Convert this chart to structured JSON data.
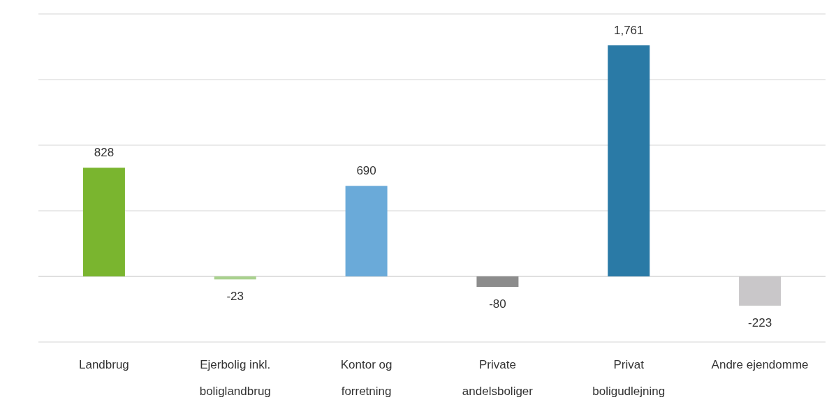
{
  "chart_data": {
    "type": "bar",
    "categories": [
      "Landbrug",
      "Ejerbolig inkl. boliglandbrug",
      "Kontor og forretning",
      "Private andelsboliger",
      "Privat boligudlejning",
      "Andre ejendomme"
    ],
    "values": [
      828,
      -23,
      690,
      -80,
      1761,
      -223
    ],
    "colors": [
      "#7ab52f",
      "#a9d18e",
      "#6aaad9",
      "#8c8c8c",
      "#2a7aa6",
      "#c9c7c9"
    ],
    "ylim": [
      -500,
      2000
    ],
    "yticks": [
      {
        "value": -500,
        "label": null
      },
      {
        "value": 0,
        "label": null
      },
      {
        "value": 500,
        "label": null
      },
      {
        "value": 1000,
        "label": null
      },
      {
        "value": 1500,
        "label": null
      },
      {
        "value": 2000,
        "label": null
      }
    ],
    "value_labels": [
      "828",
      "-23",
      "690",
      "-80",
      "1,761",
      "-223"
    ],
    "grid": "y",
    "tick_labels": "x"
  }
}
